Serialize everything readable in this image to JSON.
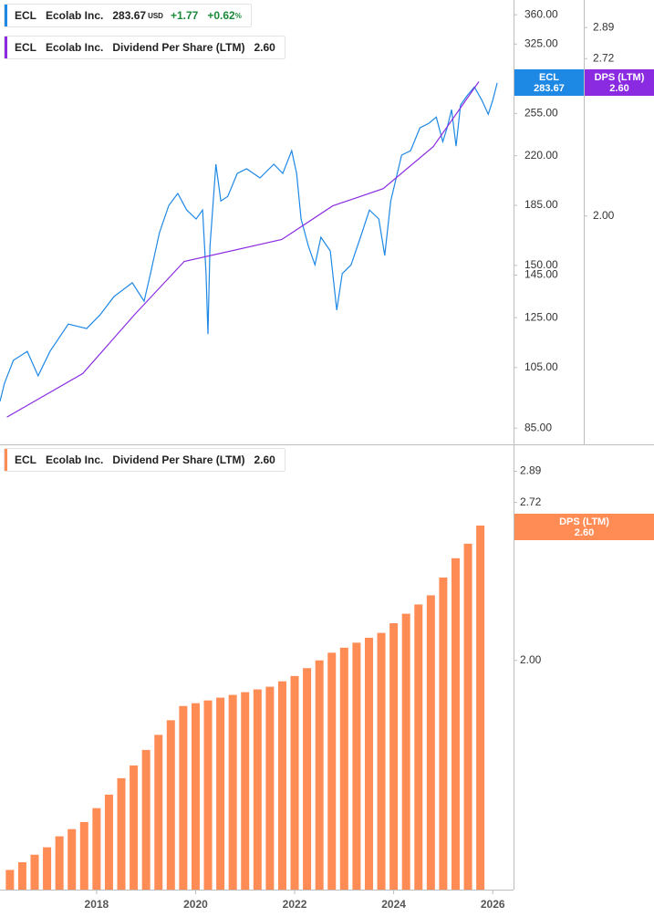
{
  "chart_data": [
    {
      "type": "line",
      "legends": [
        {
          "symbol": "ECL",
          "name": "Ecolab Inc.",
          "last": "283.67",
          "currency": "USD",
          "change": "+1.77",
          "change_pct": "+0.62",
          "pct_unit": "%"
        },
        {
          "symbol": "ECL",
          "name": "Ecolab Inc.",
          "metric": "Dividend Per Share (LTM)",
          "last": "2.60"
        }
      ],
      "xlim": [
        2016.05,
        2026.42
      ],
      "ylim": [
        80.3,
        379
      ],
      "yscale": "log",
      "yticks": [
        {
          "value": 85,
          "label": "85.00"
        },
        {
          "value": 105,
          "label": "105.00"
        },
        {
          "value": 125,
          "label": "125.00"
        },
        {
          "value": 145,
          "label": "145.00"
        },
        {
          "value": 150,
          "label": "150.00"
        },
        {
          "value": 185,
          "label": "185.00"
        },
        {
          "value": 220,
          "label": "220.00"
        },
        {
          "value": 255,
          "label": "255.00"
        },
        {
          "value": 325,
          "label": "325.00"
        },
        {
          "value": 360,
          "label": "360.00"
        }
      ],
      "y2lim": [
        1.28,
        3.05
      ],
      "y2scale": "log",
      "y2ticks": [
        {
          "value": 2,
          "label": "2.00"
        },
        {
          "value": 2.72,
          "label": "2.72"
        },
        {
          "value": 2.89,
          "label": "2.89"
        }
      ],
      "series": [
        {
          "name": "ECL",
          "color": "#1e88e5",
          "x": [
            2016.05,
            2016.14,
            2016.32,
            2016.6,
            2016.82,
            2017.06,
            2017.43,
            2017.8,
            2018.07,
            2018.35,
            2018.72,
            2018.96,
            2019.09,
            2019.27,
            2019.46,
            2019.64,
            2019.82,
            2020.01,
            2020.14,
            2020.21,
            2020.25,
            2020.29,
            2020.41,
            2020.51,
            2020.65,
            2020.84,
            2021.03,
            2021.3,
            2021.58,
            2021.76,
            2021.94,
            2022.04,
            2022.13,
            2022.28,
            2022.41,
            2022.53,
            2022.72,
            2022.85,
            2022.96,
            2023.14,
            2023.33,
            2023.51,
            2023.7,
            2023.82,
            2023.94,
            2024.16,
            2024.34,
            2024.53,
            2024.71,
            2024.86,
            2024.99,
            2025.08,
            2025.17,
            2025.26,
            2025.35,
            2025.48,
            2025.63,
            2025.78,
            2025.91,
            2026.0,
            2026.09
          ],
          "values": [
            93.3,
            99.4,
            107.7,
            111.1,
            102,
            111.1,
            122.2,
            120.3,
            126.2,
            134.5,
            141.2,
            132.4,
            145.8,
            168.2,
            185,
            192.9,
            182,
            176.4,
            182,
            145.8,
            118,
            160.3,
            213.6,
            187.9,
            190.9,
            206.8,
            210.2,
            203.6,
            213.6,
            206.8,
            223.9,
            206.8,
            176.4,
            160.3,
            150.3,
            165.5,
            157.8,
            128.3,
            145.8,
            150.3,
            165.5,
            182,
            176.4,
            155.3,
            187.9,
            220.5,
            223.9,
            242.5,
            246.4,
            251.8,
            231.1,
            242.5,
            258.4,
            227.5,
            262.6,
            271.2,
            279.7,
            267,
            254.3,
            267,
            283.67
          ]
        },
        {
          "name": "DPS (LTM)",
          "color": "#8a2be2",
          "axis": "y2",
          "x": [
            2016.19,
            2017.72,
            2018.77,
            2019.77,
            2021.74,
            2022.77,
            2023.79,
            2024.8,
            2025.72
          ],
          "values": [
            1.35,
            1.47,
            1.65,
            1.83,
            1.91,
            2.04,
            2.11,
            2.29,
            2.6
          ]
        }
      ]
    },
    {
      "type": "bar",
      "legends": [
        {
          "symbol": "ECL",
          "name": "Ecolab Inc.",
          "metric": "Dividend Per Share (LTM)",
          "last": "2.60"
        }
      ],
      "xlim": [
        2016.05,
        2026.42
      ],
      "xticks": [
        2018,
        2020,
        2022,
        2024,
        2026
      ],
      "ylim": [
        1.28,
        3.04
      ],
      "yscale": "log",
      "yticks": [
        {
          "value": 2,
          "label": "2.00"
        },
        {
          "value": 2.72,
          "label": "2.72"
        },
        {
          "value": 2.89,
          "label": "2.89"
        }
      ],
      "series": [
        {
          "name": "DPS (LTM)",
          "color": "#ff8c55",
          "x": [
            2016.25,
            2016.5,
            2016.75,
            2017,
            2017.25,
            2017.5,
            2017.75,
            2018,
            2018.25,
            2018.5,
            2018.75,
            2019,
            2019.25,
            2019.5,
            2019.75,
            2020,
            2020.25,
            2020.5,
            2020.75,
            2021,
            2021.25,
            2021.5,
            2021.75,
            2022,
            2022.25,
            2022.5,
            2022.75,
            2023,
            2023.25,
            2023.5,
            2023.75,
            2024,
            2024.25,
            2024.5,
            2024.75,
            2025,
            2025.25,
            2025.5,
            2025.75
          ],
          "values": [
            1.33,
            1.35,
            1.37,
            1.39,
            1.42,
            1.44,
            1.46,
            1.5,
            1.54,
            1.59,
            1.63,
            1.68,
            1.73,
            1.78,
            1.83,
            1.84,
            1.85,
            1.86,
            1.87,
            1.88,
            1.89,
            1.9,
            1.92,
            1.94,
            1.97,
            2,
            2.03,
            2.05,
            2.07,
            2.09,
            2.11,
            2.15,
            2.19,
            2.23,
            2.27,
            2.35,
            2.44,
            2.51,
            2.6
          ]
        }
      ]
    }
  ]
}
